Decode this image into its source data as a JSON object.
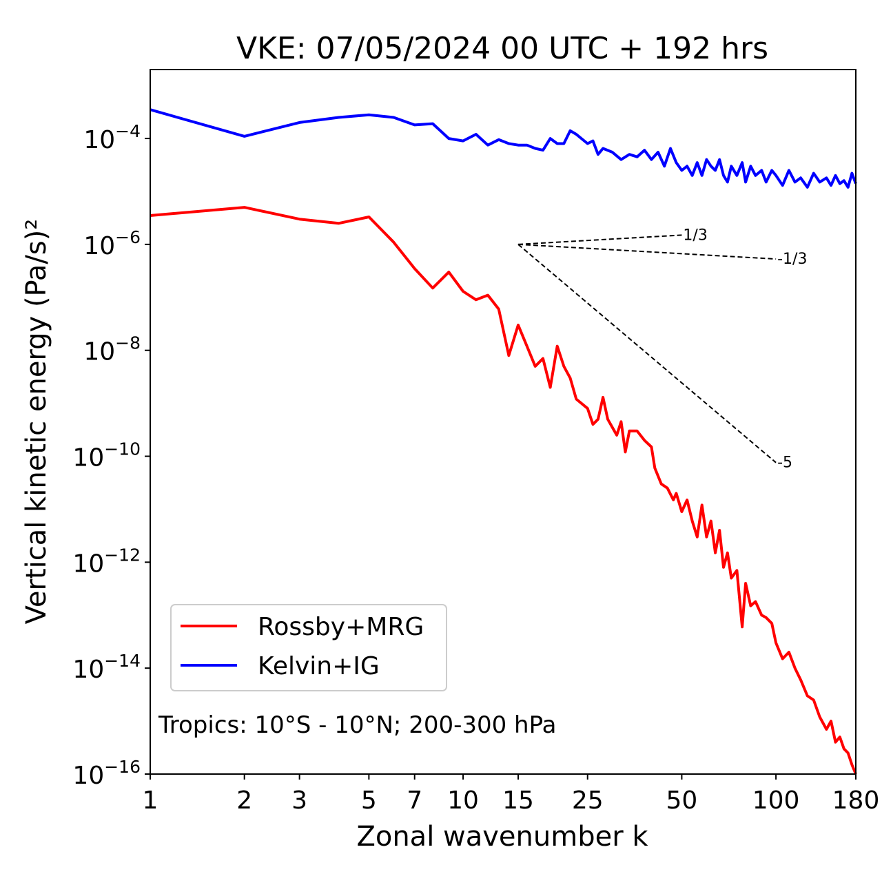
{
  "chart_data": {
    "type": "line",
    "title": "VKE: 07/05/2024 00 UTC + 192 hrs",
    "xlabel": "Zonal wavenumber k",
    "ylabel": "Vertical kinetic energy (Pa/s)²",
    "xscale": "log",
    "yscale": "log",
    "xlim": [
      1,
      180
    ],
    "ylim": [
      1e-16,
      0.002
    ],
    "x_ticks": [
      1,
      2,
      3,
      5,
      7,
      10,
      15,
      25,
      50,
      100,
      180
    ],
    "x_tick_labels": [
      "1",
      "2",
      "3",
      "5",
      "7",
      "10",
      "15",
      "25",
      "50",
      "100",
      "180"
    ],
    "y_ticks": [
      1e-16,
      1e-14,
      1e-12,
      1e-10,
      1e-08,
      1e-06,
      0.0001
    ],
    "y_tick_labels": [
      {
        "base": "10",
        "exp": "−16"
      },
      {
        "base": "10",
        "exp": "−14"
      },
      {
        "base": "10",
        "exp": "−12"
      },
      {
        "base": "10",
        "exp": "−10"
      },
      {
        "base": "10",
        "exp": "−8"
      },
      {
        "base": "10",
        "exp": "−6"
      },
      {
        "base": "10",
        "exp": "−4"
      }
    ],
    "grid": false,
    "legend_position": "lower-left",
    "annotation": "Tropics: 10°S - 10°N; 200-300 hPa",
    "series": [
      {
        "name": "Rossby+MRG",
        "color": "#ff0000",
        "points": [
          [
            1,
            3.5e-06
          ],
          [
            2,
            5e-06
          ],
          [
            3,
            3e-06
          ],
          [
            4,
            2.5e-06
          ],
          [
            5,
            3.3e-06
          ],
          [
            6,
            1.1e-06
          ],
          [
            7,
            3.5e-07
          ],
          [
            8,
            1.5e-07
          ],
          [
            9,
            3e-07
          ],
          [
            10,
            1.3e-07
          ],
          [
            11,
            9e-08
          ],
          [
            12,
            1.1e-07
          ],
          [
            13,
            6e-08
          ],
          [
            14,
            8e-09
          ],
          [
            15,
            3e-08
          ],
          [
            16,
            1.2e-08
          ],
          [
            17,
            5e-09
          ],
          [
            18,
            7e-09
          ],
          [
            19,
            2e-09
          ],
          [
            20,
            1.2e-08
          ],
          [
            21,
            5e-09
          ],
          [
            22,
            3e-09
          ],
          [
            23,
            1.2e-09
          ],
          [
            25,
            8e-10
          ],
          [
            26,
            4e-10
          ],
          [
            27,
            5e-10
          ],
          [
            28,
            1.3e-09
          ],
          [
            29,
            5e-10
          ],
          [
            31,
            2.5e-10
          ],
          [
            32,
            4.5e-10
          ],
          [
            33,
            1.2e-10
          ],
          [
            34,
            3e-10
          ],
          [
            36,
            3e-10
          ],
          [
            38,
            2e-10
          ],
          [
            40,
            1.5e-10
          ],
          [
            41,
            6e-11
          ],
          [
            43,
            3e-11
          ],
          [
            45,
            2.5e-11
          ],
          [
            47,
            1.5e-11
          ],
          [
            48,
            2e-11
          ],
          [
            50,
            9e-12
          ],
          [
            52,
            1.5e-11
          ],
          [
            54,
            6e-12
          ],
          [
            56,
            3e-12
          ],
          [
            58,
            1.2e-11
          ],
          [
            60,
            3e-12
          ],
          [
            62,
            6e-12
          ],
          [
            64,
            1.5e-12
          ],
          [
            66,
            4e-12
          ],
          [
            68,
            8e-13
          ],
          [
            70,
            1.5e-12
          ],
          [
            72,
            5e-13
          ],
          [
            75,
            7e-13
          ],
          [
            78,
            6e-14
          ],
          [
            80,
            4e-13
          ],
          [
            83,
            1.5e-13
          ],
          [
            86,
            1.8e-13
          ],
          [
            90,
            1e-13
          ],
          [
            93,
            9e-14
          ],
          [
            97,
            7e-14
          ],
          [
            100,
            3e-14
          ],
          [
            105,
            1.5e-14
          ],
          [
            110,
            2e-14
          ],
          [
            115,
            1e-14
          ],
          [
            120,
            6e-15
          ],
          [
            126,
            3e-15
          ],
          [
            132,
            2.5e-15
          ],
          [
            138,
            1.2e-15
          ],
          [
            145,
            7e-16
          ],
          [
            150,
            1e-15
          ],
          [
            155,
            4e-16
          ],
          [
            160,
            5e-16
          ],
          [
            165,
            3e-16
          ],
          [
            170,
            2.5e-16
          ],
          [
            175,
            1.5e-16
          ],
          [
            180,
            1e-16
          ]
        ]
      },
      {
        "name": "Kelvin+IG",
        "color": "#0000ff",
        "points": [
          [
            1,
            0.00035
          ],
          [
            2,
            0.00011
          ],
          [
            3,
            0.0002
          ],
          [
            4,
            0.00025
          ],
          [
            5,
            0.00028
          ],
          [
            6,
            0.00025
          ],
          [
            7,
            0.00018
          ],
          [
            8,
            0.00019
          ],
          [
            9,
            0.0001
          ],
          [
            10,
            9e-05
          ],
          [
            11,
            0.00012
          ],
          [
            12,
            7.5e-05
          ],
          [
            13,
            9.5e-05
          ],
          [
            14,
            8e-05
          ],
          [
            15,
            7.5e-05
          ],
          [
            16,
            7.5e-05
          ],
          [
            17,
            6.5e-05
          ],
          [
            18,
            6e-05
          ],
          [
            19,
            0.0001
          ],
          [
            20,
            8e-05
          ],
          [
            21,
            8e-05
          ],
          [
            22,
            0.00014
          ],
          [
            23,
            0.00012
          ],
          [
            25,
            8e-05
          ],
          [
            26,
            9e-05
          ],
          [
            27,
            5e-05
          ],
          [
            28,
            6.5e-05
          ],
          [
            30,
            5.5e-05
          ],
          [
            32,
            4e-05
          ],
          [
            34,
            5e-05
          ],
          [
            36,
            4.5e-05
          ],
          [
            38,
            6e-05
          ],
          [
            40,
            4e-05
          ],
          [
            42,
            5.5e-05
          ],
          [
            44,
            3e-05
          ],
          [
            46,
            6.5e-05
          ],
          [
            48,
            3.5e-05
          ],
          [
            50,
            2.5e-05
          ],
          [
            52,
            3e-05
          ],
          [
            54,
            2e-05
          ],
          [
            56,
            3.5e-05
          ],
          [
            58,
            2e-05
          ],
          [
            60,
            4e-05
          ],
          [
            62,
            3e-05
          ],
          [
            64,
            2.5e-05
          ],
          [
            66,
            4e-05
          ],
          [
            68,
            2e-05
          ],
          [
            70,
            1.5e-05
          ],
          [
            72,
            3e-05
          ],
          [
            75,
            2e-05
          ],
          [
            78,
            3.5e-05
          ],
          [
            80,
            1.5e-05
          ],
          [
            83,
            3e-05
          ],
          [
            86,
            2e-05
          ],
          [
            90,
            2.5e-05
          ],
          [
            93,
            1.5e-05
          ],
          [
            97,
            2.5e-05
          ],
          [
            100,
            2e-05
          ],
          [
            105,
            1.3e-05
          ],
          [
            110,
            2.5e-05
          ],
          [
            115,
            1.5e-05
          ],
          [
            120,
            1.8e-05
          ],
          [
            126,
            1.2e-05
          ],
          [
            132,
            2.2e-05
          ],
          [
            138,
            1.5e-05
          ],
          [
            145,
            1.8e-05
          ],
          [
            150,
            1.3e-05
          ],
          [
            155,
            2e-05
          ],
          [
            160,
            1.4e-05
          ],
          [
            165,
            1.6e-05
          ],
          [
            170,
            1.2e-05
          ],
          [
            175,
            2.2e-05
          ],
          [
            180,
            1.4e-05
          ]
        ]
      }
    ],
    "reference_lines": [
      {
        "label": "1/3",
        "points": [
          [
            15,
            1e-06
          ],
          [
            50,
            1.5e-06
          ]
        ]
      },
      {
        "label": "-1/3",
        "points": [
          [
            15,
            1e-06
          ],
          [
            100,
            5.3e-07
          ]
        ]
      },
      {
        "label": "-5",
        "points": [
          [
            15,
            1e-06
          ],
          [
            100,
            7.6e-11
          ]
        ]
      }
    ]
  }
}
